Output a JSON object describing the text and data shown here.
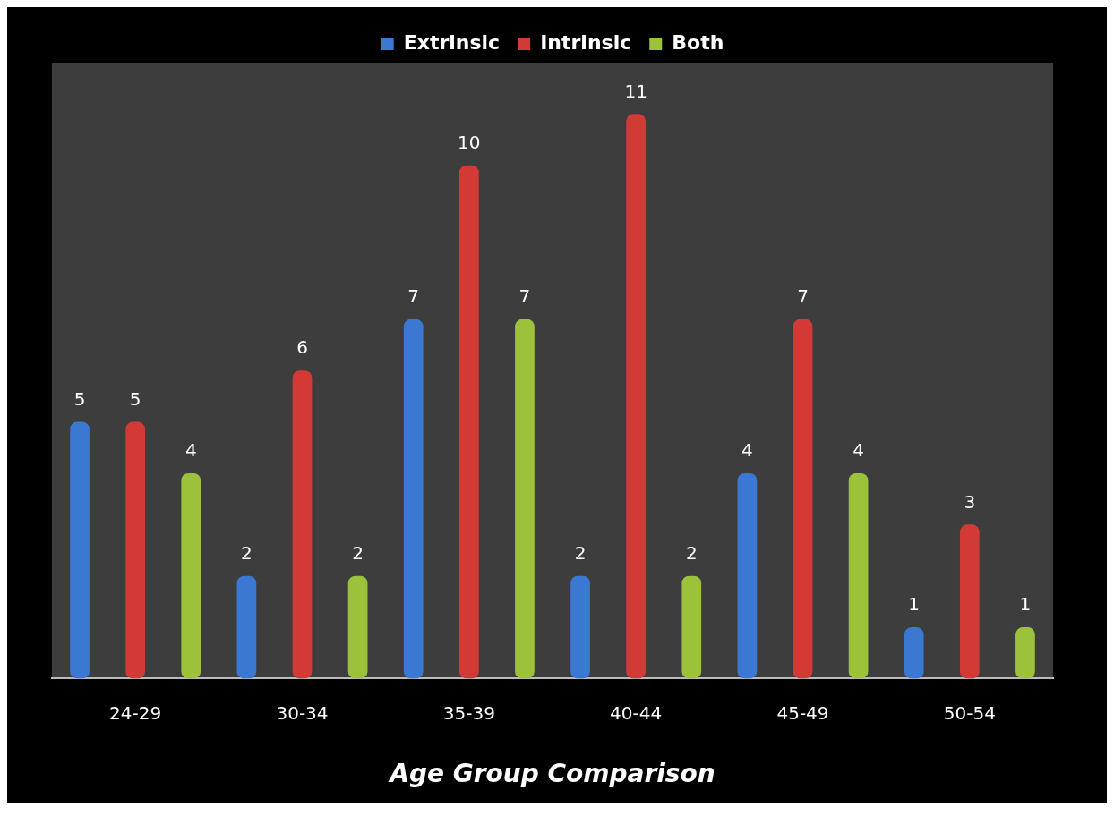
{
  "chart_data": {
    "type": "bar",
    "xlabel": "Age Group Comparison",
    "categories": [
      "24-29",
      "30-34",
      "35-39",
      "40-44",
      "45-49",
      "50-54"
    ],
    "series": [
      {
        "name": "Extrinsic",
        "color": "#3b78d2",
        "values": [
          5,
          2,
          7,
          2,
          4,
          1
        ]
      },
      {
        "name": "Intrinsic",
        "color": "#d33a36",
        "values": [
          5,
          6,
          10,
          11,
          7,
          3
        ]
      },
      {
        "name": "Both",
        "color": "#9cc23c",
        "values": [
          4,
          2,
          7,
          2,
          4,
          1
        ]
      }
    ],
    "data_labels": true,
    "legend": "top",
    "grid": false
  }
}
